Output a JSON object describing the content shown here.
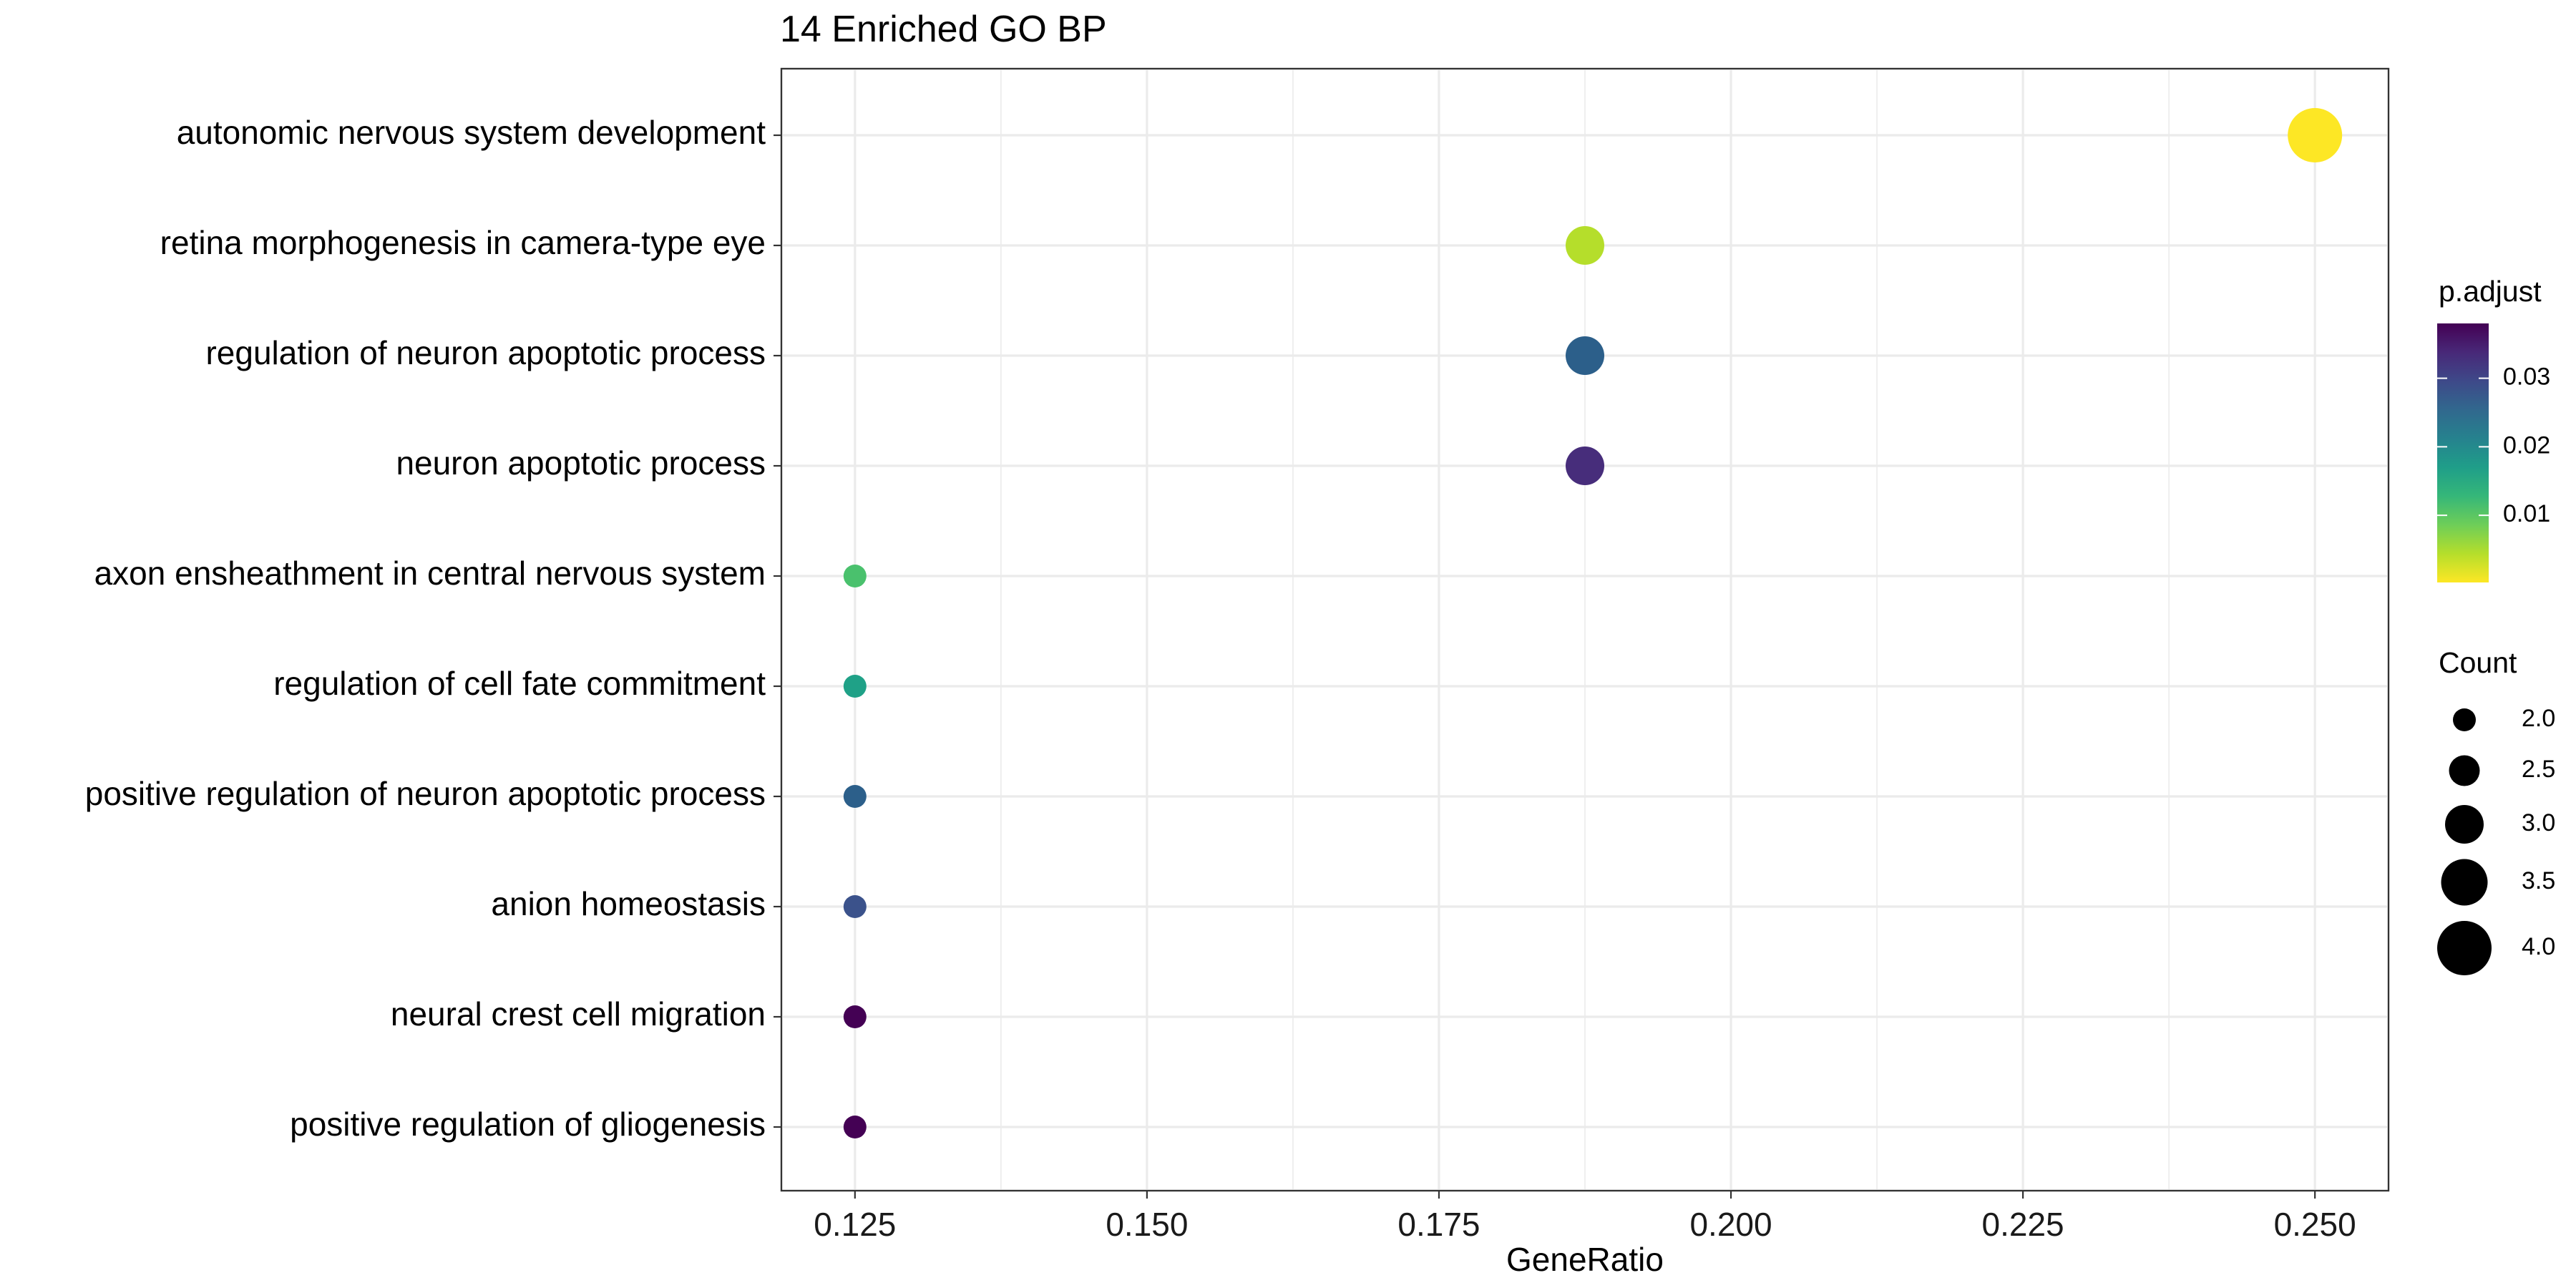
{
  "chart_data": {
    "type": "scatter",
    "title": "14 Enriched GO BP",
    "xlabel": "GeneRatio",
    "ylabel": "",
    "xlim": [
      0.1187,
      0.2563
    ],
    "x_ticks": [
      0.125,
      0.15,
      0.175,
      0.2,
      0.225,
      0.25
    ],
    "x_tick_labels": [
      "0.125",
      "0.150",
      "0.175",
      "0.200",
      "0.225",
      "0.250"
    ],
    "grid": true,
    "categories": [
      "autonomic nervous system development",
      "retina morphogenesis in camera-type eye",
      "regulation of neuron apoptotic process",
      "neuron apoptotic process",
      "axon ensheathment in central nervous system",
      "regulation of cell fate commitment",
      "positive regulation of neuron apoptotic process",
      "anion homeostasis",
      "neural crest cell migration",
      "positive regulation of gliogenesis"
    ],
    "points": [
      {
        "term": "autonomic nervous system development",
        "gene_ratio": 0.25,
        "count": 4,
        "p_adjust": 0.0002,
        "color": "#fde725"
      },
      {
        "term": "retina morphogenesis in camera-type eye",
        "gene_ratio": 0.1875,
        "count": 3,
        "p_adjust": 0.006,
        "color": "#b5de2b"
      },
      {
        "term": "regulation of neuron apoptotic process",
        "gene_ratio": 0.1875,
        "count": 3,
        "p_adjust": 0.024,
        "color": "#2c5f8a"
      },
      {
        "term": "neuron apoptotic process",
        "gene_ratio": 0.1875,
        "count": 3,
        "p_adjust": 0.035,
        "color": "#472d7b"
      },
      {
        "term": "axon ensheathment in central nervous system",
        "gene_ratio": 0.125,
        "count": 2,
        "p_adjust": 0.01,
        "color": "#4ac16d"
      },
      {
        "term": "regulation of cell fate commitment",
        "gene_ratio": 0.125,
        "count": 2,
        "p_adjust": 0.016,
        "color": "#1fa187"
      },
      {
        "term": "positive regulation of neuron apoptotic process",
        "gene_ratio": 0.125,
        "count": 2,
        "p_adjust": 0.024,
        "color": "#2c5f8a"
      },
      {
        "term": "anion homeostasis",
        "gene_ratio": 0.125,
        "count": 2,
        "p_adjust": 0.029,
        "color": "#3b528b"
      },
      {
        "term": "neural crest cell migration",
        "gene_ratio": 0.125,
        "count": 2,
        "p_adjust": 0.038,
        "color": "#440154"
      },
      {
        "term": "positive regulation of gliogenesis",
        "gene_ratio": 0.125,
        "count": 2,
        "p_adjust": 0.038,
        "color": "#440154"
      }
    ],
    "legend": {
      "placement": "right",
      "color_title": "p.adjust",
      "color_range": [
        0.0002,
        0.038
      ],
      "color_ticks": [
        0.01,
        0.02,
        0.03
      ],
      "color_tick_labels": [
        "0.01",
        "0.02",
        "0.03"
      ],
      "colors_low_to_high": [
        "#fde725",
        "#b5de2b",
        "#6ece58",
        "#35b779",
        "#1f9e89",
        "#26828e",
        "#31688e",
        "#3e4989",
        "#482878",
        "#440154"
      ],
      "size_title": "Count",
      "size_values": [
        2.0,
        2.5,
        3.0,
        3.5,
        4.0
      ],
      "size_labels": [
        "2.0",
        "2.5",
        "3.0",
        "3.5",
        "4.0"
      ]
    }
  }
}
